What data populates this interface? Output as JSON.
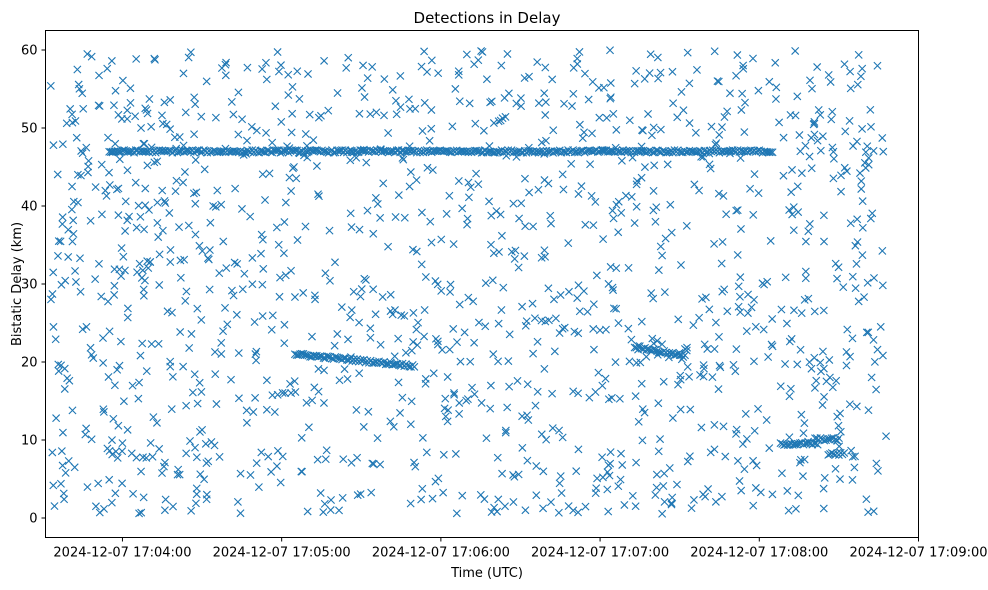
{
  "chart_data": {
    "type": "scatter",
    "title": "Detections in Delay",
    "xlabel": "Time (UTC)",
    "ylabel": "Bistatic Delay (km)",
    "marker": "x",
    "color": "#1f77b4",
    "xlim_seconds": [
      -29,
      300
    ],
    "ylim": [
      -2.5,
      62.5
    ],
    "x_ticks": [
      {
        "t": 0,
        "label": "2024-12-07 17:04:00"
      },
      {
        "t": 60,
        "label": "2024-12-07 17:05:00"
      },
      {
        "t": 120,
        "label": "2024-12-07 17:06:00"
      },
      {
        "t": 180,
        "label": "2024-12-07 17:07:00"
      },
      {
        "t": 240,
        "label": "2024-12-07 17:08:00"
      },
      {
        "t": 300,
        "label": "2024-12-07 17:09:00"
      }
    ],
    "y_ticks": [
      0,
      10,
      20,
      30,
      40,
      50,
      60
    ],
    "x_start": "2024-12-07 17:03:30",
    "series": [
      {
        "name": "detections",
        "description_of_random_clutter": "about 1500 scattered detections over t in [-27, 288] s, delay 0.5-60 km",
        "clutter_points": [
          [
            -27,
            55.4
          ],
          [
            -26,
            47.8
          ],
          [
            -26,
            24.5
          ],
          [
            -25,
            12.8
          ],
          [
            -24,
            35.5
          ],
          [
            -23,
            29.9
          ],
          [
            -22,
            2.4
          ],
          [
            -21,
            50.6
          ],
          [
            -20,
            17.6
          ],
          [
            -19,
            42.5
          ],
          [
            -18,
            6.5
          ],
          [
            -17,
            57.5
          ],
          [
            -16,
            33.3
          ],
          [
            -15,
            24.2
          ],
          [
            -14,
            10.7
          ],
          [
            -13,
            44.3
          ],
          [
            -12,
            38.1
          ],
          [
            -11,
            20.5
          ],
          [
            -10,
            1.5
          ],
          [
            -9,
            52.9
          ],
          [
            -8,
            28.4
          ],
          [
            -7,
            13.6
          ],
          [
            -6,
            41.3
          ],
          [
            -5,
            4.9
          ],
          [
            -4,
            58.6
          ],
          [
            -3,
            31.9
          ],
          [
            -2,
            19.0
          ],
          [
            -1,
            46.0
          ],
          [
            0,
            9.6
          ],
          [
            1,
            36.8
          ],
          [
            2,
            25.7
          ],
          [
            3,
            55.1
          ],
          [
            4,
            3.1
          ],
          [
            5,
            43.0
          ],
          [
            6,
            15.3
          ],
          [
            7,
            50.0
          ],
          [
            8,
            29.3
          ],
          [
            9,
            7.7
          ],
          [
            10,
            39.5
          ],
          [
            11,
            22.3
          ],
          [
            12,
            58.9
          ],
          [
            13,
            12.2
          ],
          [
            14,
            33.8
          ],
          [
            15,
            47.1
          ],
          [
            16,
            1.0
          ],
          [
            17,
            26.5
          ],
          [
            18,
            53.6
          ],
          [
            19,
            18.1
          ],
          [
            20,
            41.9
          ],
          [
            21,
            6.2
          ],
          [
            22,
            30.8
          ],
          [
            23,
            57.0
          ],
          [
            24,
            14.4
          ],
          [
            25,
            37.5
          ],
          [
            26,
            23.6
          ],
          [
            27,
            49.2
          ],
          [
            28,
            3.8
          ],
          [
            29,
            34.9
          ],
          [
            30,
            11.3
          ],
          [
            31,
            44.7
          ]
        ],
        "track_segments": [
          {
            "note": "horizontal track near 47 km",
            "t_range": [
              -5,
              245
            ],
            "y": 47.0
          },
          {
            "note": "track near 20 km",
            "t_range": [
              65,
              110
            ],
            "y_start": 21,
            "y_end": 19.5
          },
          {
            "note": "track near 21 km",
            "t_range": [
              193,
              212
            ],
            "y_start": 22,
            "y_end": 20.7
          },
          {
            "note": "cluster near 9.5 km",
            "t_range": [
              248,
              262
            ],
            "y": 9.5
          },
          {
            "note": "cluster near 10 km",
            "t_range": [
              261,
              270
            ],
            "y": 10.1
          },
          {
            "note": "cluster near 8.2 km",
            "t_range": [
              266,
              272
            ],
            "y": 8.2
          }
        ]
      }
    ]
  }
}
